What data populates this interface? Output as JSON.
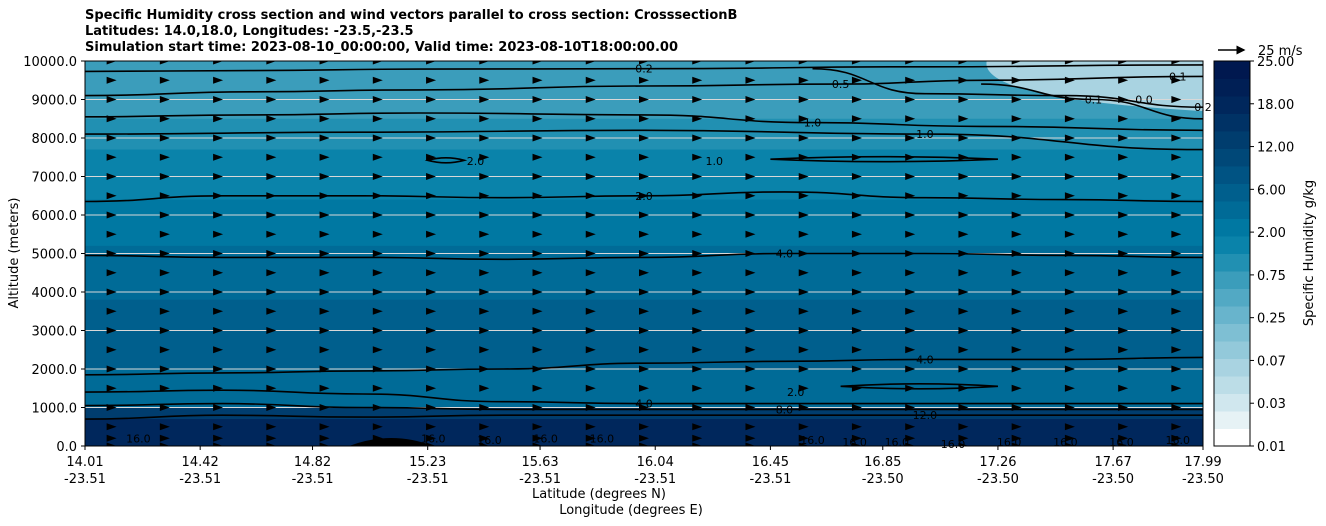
{
  "chart_data": {
    "type": "contourf",
    "title_lines": [
      "Specific Humidity cross section and wind vectors parallel to cross section: CrosssectionB",
      "Latitudes: 14.0,18.0, Longitudes: -23.5,-23.5",
      "Simulation start time: 2023-08-10_00:00:00, Valid time: 2023-08-10T18:00:00.00"
    ],
    "ylabel": "Altitude (meters)",
    "xlabel_lat": "Latitude (degrees N)",
    "xlabel_lon": "Longitude (degrees E)",
    "ylim": [
      0,
      10000
    ],
    "yticks": [
      "0.0",
      "1000.0",
      "2000.0",
      "3000.0",
      "4000.0",
      "5000.0",
      "6000.0",
      "7000.0",
      "8000.0",
      "9000.0",
      "10000.0"
    ],
    "xlim": [
      14.01,
      17.99
    ],
    "xticks_lat": [
      "14.01",
      "14.42",
      "14.82",
      "15.23",
      "15.63",
      "16.04",
      "16.45",
      "16.85",
      "17.26",
      "17.67",
      "17.99"
    ],
    "xticks_lon": [
      "-23.51",
      "-23.51",
      "-23.51",
      "-23.51",
      "-23.51",
      "-23.51",
      "-23.51",
      "-23.50",
      "-23.50",
      "-23.50",
      "-23.50"
    ],
    "colorbar": {
      "label": "Specific Humidity g/kg",
      "tick_labels": [
        "0.01",
        "0.03",
        "0.07",
        "0.25",
        "0.75",
        "2.00",
        "6.00",
        "12.00",
        "18.00",
        "25.00"
      ],
      "colors": [
        "#ffffff",
        "#e6f2f5",
        "#d0e7ee",
        "#bcdde7",
        "#a9d3e1",
        "#93c9da",
        "#7ebfd3",
        "#68b4cc",
        "#52a9c4",
        "#3b9dbb",
        "#2190b2",
        "#0a83aa",
        "#0078a2",
        "#006b97",
        "#005f8d",
        "#005383",
        "#004878",
        "#003d6e",
        "#003265",
        "#00275c",
        "#001f55",
        "#00184f"
      ]
    },
    "humidity_layers": [
      {
        "altitude_top": 10000,
        "value": 0.5,
        "color": "#3b9dbb"
      },
      {
        "altitude_top": 8500,
        "value": 1.0,
        "color": "#2190b2"
      },
      {
        "altitude_top": 7700,
        "value": 1.5,
        "color": "#0a83aa"
      },
      {
        "altitude_top": 6400,
        "value": 2.5,
        "color": "#0078a2"
      },
      {
        "altitude_top": 5200,
        "value": 4.0,
        "color": "#006b97"
      },
      {
        "altitude_top": 3800,
        "value": 5.0,
        "color": "#005f8d"
      },
      {
        "altitude_top": 2000,
        "value": 4.0,
        "color": "#006b97"
      },
      {
        "altitude_top": 1000,
        "value": 12.0,
        "color": "#003d6e"
      },
      {
        "altitude_top": 700,
        "value": 16.0,
        "color": "#00275c"
      }
    ],
    "contours": [
      {
        "label": "0.2",
        "x": [
          14.01,
          14.6,
          15.2,
          16.0,
          17.0,
          17.99
        ],
        "y": [
          9730,
          9750,
          9790,
          9800,
          9850,
          9900
        ]
      },
      {
        "label": "0.5",
        "x": [
          14.01,
          14.6,
          15.2,
          16.0,
          16.7,
          17.2,
          17.99
        ],
        "y": [
          9100,
          9200,
          9250,
          9350,
          9400,
          9500,
          9600
        ]
      },
      {
        "label": "0.2",
        "x": [
          16.6,
          17.0,
          17.5,
          17.99
        ],
        "y": [
          9800,
          9150,
          9100,
          8800
        ]
      },
      {
        "label": "0.1",
        "x": [
          17.2,
          17.6,
          17.99
        ],
        "y": [
          9400,
          9000,
          8500
        ]
      },
      {
        "label": "1.0",
        "x": [
          14.01,
          14.6,
          15.2,
          16.0,
          16.6,
          17.2,
          17.99
        ],
        "y": [
          8550,
          8600,
          8650,
          8600,
          8400,
          8300,
          8200
        ]
      },
      {
        "label": "1.0",
        "x": [
          14.01,
          15.0,
          16.0,
          17.0,
          17.99
        ],
        "y": [
          8100,
          8150,
          8200,
          8100,
          7700
        ]
      },
      {
        "label": "2.0",
        "x": [
          14.01,
          14.5,
          15.0,
          15.5,
          16.0,
          16.5,
          17.0,
          17.5,
          17.99
        ],
        "y": [
          6350,
          6500,
          6500,
          6450,
          6500,
          6600,
          6450,
          6400,
          6350
        ]
      },
      {
        "label": "4.0",
        "x": [
          14.01,
          14.5,
          15.0,
          15.5,
          16.0,
          16.5,
          17.0,
          17.5,
          17.99
        ],
        "y": [
          4950,
          4900,
          4900,
          4850,
          4900,
          5000,
          5000,
          4950,
          4900
        ]
      },
      {
        "label": "4.0",
        "x": [
          14.01,
          14.5,
          15.0,
          15.5,
          16.0,
          16.5,
          17.0,
          17.5,
          17.99
        ],
        "y": [
          1850,
          1900,
          1950,
          2000,
          2150,
          2200,
          2250,
          2250,
          2300
        ]
      },
      {
        "label": "4.0",
        "x": [
          14.01,
          14.5,
          15.0,
          15.5,
          16.0,
          16.5,
          17.0,
          17.5,
          17.99
        ],
        "y": [
          1400,
          1450,
          1350,
          1150,
          1100,
          1100,
          1100,
          1100,
          1100
        ]
      },
      {
        "label": "8.0",
        "x": [
          14.01,
          14.5,
          15.0,
          15.5,
          16.0,
          16.5,
          17.0,
          17.5,
          17.99
        ],
        "y": [
          1050,
          1100,
          1000,
          950,
          950,
          950,
          950,
          950,
          950
        ]
      },
      {
        "label": "12.0",
        "x": [
          14.01,
          14.5,
          15.0,
          15.5,
          16.0,
          16.5,
          17.0,
          17.5,
          17.99
        ],
        "y": [
          700,
          800,
          750,
          800,
          800,
          800,
          800,
          800,
          800
        ]
      }
    ],
    "scattered_labels": [
      {
        "text": "2.0",
        "x": 15.4,
        "y": 7400
      },
      {
        "text": "1.0",
        "x": 16.25,
        "y": 7400
      },
      {
        "text": "2.0",
        "x": 16.54,
        "y": 1400
      },
      {
        "text": "0.1",
        "x": 17.9,
        "y": 9600
      },
      {
        "text": "0.0",
        "x": 17.78,
        "y": 9000
      },
      {
        "text": "16.0",
        "x": 14.2,
        "y": 200
      },
      {
        "text": "16.0",
        "x": 15.25,
        "y": 200
      },
      {
        "text": "16.0",
        "x": 15.45,
        "y": 150
      },
      {
        "text": "16.0",
        "x": 15.65,
        "y": 200
      },
      {
        "text": "16.0",
        "x": 15.85,
        "y": 200
      },
      {
        "text": "16.0",
        "x": 16.6,
        "y": 150
      },
      {
        "text": "16.0",
        "x": 16.75,
        "y": 100
      },
      {
        "text": "16.0",
        "x": 16.9,
        "y": 100
      },
      {
        "text": "16.0",
        "x": 17.1,
        "y": 50
      },
      {
        "text": "16.0",
        "x": 17.3,
        "y": 100
      },
      {
        "text": "16.0",
        "x": 17.5,
        "y": 100
      },
      {
        "text": "16.0",
        "x": 17.7,
        "y": 100
      },
      {
        "text": "16.0",
        "x": 17.9,
        "y": 150
      }
    ],
    "islands": [
      {
        "x": [
          15.23,
          15.36
        ],
        "y": 7420
      },
      {
        "x": [
          16.45,
          17.26
        ],
        "y": 7450
      },
      {
        "x": [
          16.7,
          17.26
        ],
        "y": 1550
      }
    ],
    "wind_vectors": {
      "direction": "parallel (eastward)",
      "columns": 21,
      "rows_altitude": [
        0,
        200,
        500,
        1000,
        1500,
        2000,
        2500,
        3000,
        3500,
        4000,
        4500,
        5000,
        5500,
        6000,
        6500,
        7000,
        7500,
        8000,
        8500,
        9000,
        9500,
        10000
      ],
      "key_label": "25 m/s",
      "key_speed": 25
    }
  }
}
